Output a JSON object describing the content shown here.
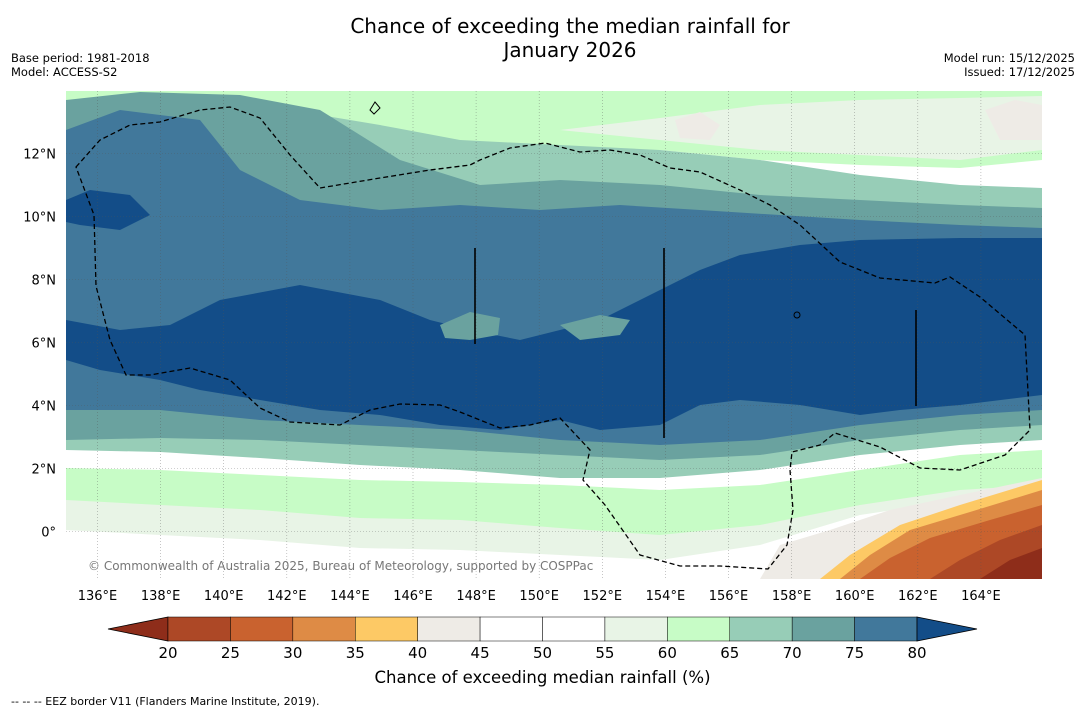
{
  "title_line1": "Chance of exceeding the median rainfall for",
  "title_line2": "January 2026",
  "base_period": "Base period: 1981-2018",
  "model": "Model: ACCESS-S2",
  "model_run": "Model run: 15/12/2025",
  "issued": "Issued: 17/12/2025",
  "copyright": "© Commonwealth of Australia 2025, Bureau of Meteorology, supported by COSPPac",
  "lon_ticks": [
    "136°E",
    "138°E",
    "140°E",
    "142°E",
    "144°E",
    "146°E",
    "148°E",
    "150°E",
    "152°E",
    "154°E",
    "156°E",
    "158°E",
    "160°E",
    "162°E",
    "164°E"
  ],
  "lat_ticks": [
    "12°N",
    "10°N",
    "8°N",
    "6°N",
    "4°N",
    "2°N",
    "0°"
  ],
  "colorbar": {
    "label": "Chance of exceeding median rainfall (%)",
    "ticks": [
      "20",
      "25",
      "30",
      "35",
      "40",
      "45",
      "50",
      "55",
      "60",
      "65",
      "70",
      "75",
      "80"
    ],
    "colors": [
      "#8e2d1a",
      "#ad4826",
      "#c9622f",
      "#de8b45",
      "#fdc965",
      "#eeebe6",
      "#ffffff",
      "#ffffff",
      "#e8f4e6",
      "#c7fcc6",
      "#97cdb7",
      "#6aa29f",
      "#41789b",
      "#134d88"
    ]
  },
  "footnote": "--  --  -- EEZ border V11 (Flanders Marine Institute, 2019)."
}
